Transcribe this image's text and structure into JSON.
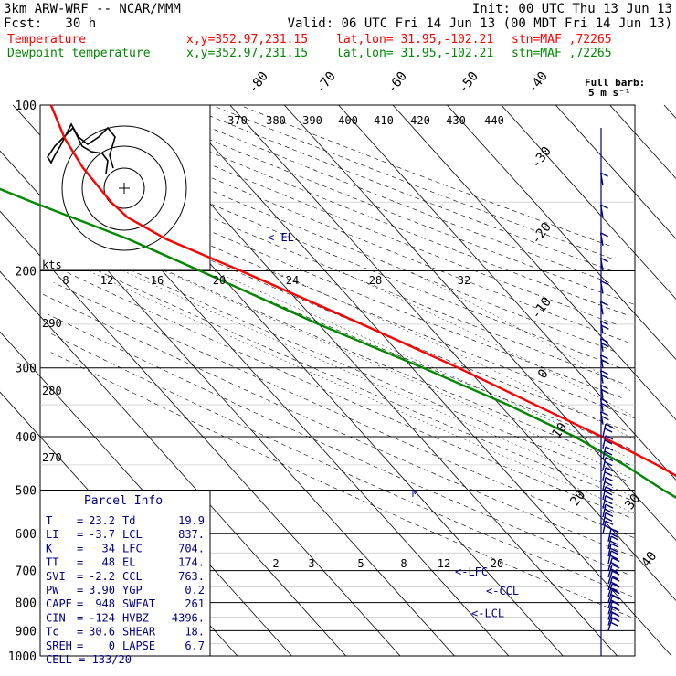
{
  "header": {
    "model": "3km ARW-WRF -- NCAR/MMM",
    "init": "Init: 00 UTC Thu 13 Jun 13",
    "fcst": "Fcst:   30 h",
    "valid": "Valid: 06 UTC Fri 14 Jun 13 (00 MDT Fri 14 Jun 13)"
  },
  "legend": {
    "temperature": {
      "label": "Temperature",
      "coords": "x,y=352.97,231.15",
      "latlon": "lat,lon= 31.95,-102.21",
      "station": "stn=MAF ,72265",
      "color": "#ff0000"
    },
    "dewpoint": {
      "label": "Dewpoint temperature",
      "coords": "x,y=352.97,231.15",
      "latlon": "lat,lon= 31.95,-102.21",
      "station": "stn=MAF ,72265",
      "color": "#008800"
    }
  },
  "barb_legend": {
    "line1": "Full barb:",
    "line2": "5 m s⁻¹"
  },
  "hodograph": {
    "units": "kts"
  },
  "parcel": {
    "title": "Parcel Info",
    "rows": [
      {
        "l": "T",
        "lv": "23.2",
        "r": "Td",
        "rv": "19.9"
      },
      {
        "l": "LI",
        "lv": "-3.7",
        "r": "LCL",
        "rv": "837."
      },
      {
        "l": "K",
        "lv": "34",
        "r": "LFC",
        "rv": "704."
      },
      {
        "l": "TT",
        "lv": "48",
        "r": "EL",
        "rv": "174."
      },
      {
        "l": "SVI",
        "lv": "-2.2",
        "r": "CCL",
        "rv": "763."
      },
      {
        "l": "PW",
        "lv": "3.90",
        "r": "YGP",
        "rv": "0.2"
      },
      {
        "l": "CAPE",
        "lv": "948",
        "r": "SWEAT",
        "rv": "261"
      },
      {
        "l": "CIN",
        "lv": "-124",
        "r": "HVBZ",
        "rv": "4396."
      },
      {
        "l": "Tc",
        "lv": "30.6",
        "r": "SHEAR",
        "rv": "18."
      },
      {
        "l": "SREH",
        "lv": "0",
        "r": "LAPSE",
        "rv": "6.7"
      }
    ],
    "cell": "CELL = 133/20"
  },
  "chart_data": {
    "type": "line",
    "title": "",
    "xlabel": "",
    "ylabel": "",
    "y_scale": "log-pressure",
    "pressure_ticks": [
      100,
      200,
      300,
      400,
      500,
      600,
      700,
      800,
      900,
      1000
    ],
    "isotherm_labels": [
      -80,
      -70,
      -60,
      -50,
      -40,
      -30,
      -20,
      -10,
      0,
      10,
      20,
      30,
      40
    ],
    "mixing_ratio_labels_low": [
      "2",
      "3",
      "5",
      "8",
      "12",
      "20"
    ],
    "mixing_ratio_labels_high": [
      "8",
      "12",
      "16",
      "20",
      "24",
      "28",
      "32"
    ],
    "theta_labels_top": [
      "370",
      "380",
      "390",
      "400",
      "410",
      "420",
      "430",
      "440"
    ],
    "theta_labels_left": [
      "290",
      "280",
      "270"
    ],
    "level_markers": [
      {
        "label": "<-EL",
        "p": 174
      },
      {
        "label": "<-LFC",
        "p": 704
      },
      {
        "label": "<-CCL",
        "p": 763
      },
      {
        "label": "<-LCL",
        "p": 837
      }
    ],
    "series": [
      {
        "name": "Temperature",
        "color": "#ff0000",
        "points": [
          {
            "p": 905,
            "t": 25.5
          },
          {
            "p": 880,
            "t": 24.0
          },
          {
            "p": 850,
            "t": 21.5
          },
          {
            "p": 820,
            "t": 20.0
          },
          {
            "p": 800,
            "t": 18.5
          },
          {
            "p": 780,
            "t": 14.5
          },
          {
            "p": 750,
            "t": 11.5
          },
          {
            "p": 700,
            "t": 8.0
          },
          {
            "p": 650,
            "t": 5.5
          },
          {
            "p": 600,
            "t": 1.2
          },
          {
            "p": 550,
            "t": -3.0
          },
          {
            "p": 500,
            "t": -7.0
          },
          {
            "p": 450,
            "t": -11.0
          },
          {
            "p": 400,
            "t": -16.5
          },
          {
            "p": 350,
            "t": -23.5
          },
          {
            "p": 300,
            "t": -31.5
          },
          {
            "p": 250,
            "t": -42.0
          },
          {
            "p": 200,
            "t": -55.5
          },
          {
            "p": 175,
            "t": -64.0
          },
          {
            "p": 160,
            "t": -67.5
          },
          {
            "p": 150,
            "t": -68.0
          },
          {
            "p": 130,
            "t": -67.5
          },
          {
            "p": 115,
            "t": -66.0
          },
          {
            "p": 100,
            "t": -63.0
          }
        ]
      },
      {
        "name": "Dewpoint temperature",
        "color": "#008800",
        "points": [
          {
            "p": 890,
            "t": 21.0
          },
          {
            "p": 860,
            "t": 17.0
          },
          {
            "p": 830,
            "t": 11.0
          },
          {
            "p": 800,
            "t": 4.5
          },
          {
            "p": 770,
            "t": 0.5
          },
          {
            "p": 700,
            "t": -3.5
          },
          {
            "p": 600,
            "t": -7.5
          },
          {
            "p": 500,
            "t": -14.0
          },
          {
            "p": 450,
            "t": -17.0
          },
          {
            "p": 400,
            "t": -21.5
          },
          {
            "p": 350,
            "t": -28.5
          },
          {
            "p": 300,
            "t": -38.0
          },
          {
            "p": 250,
            "t": -50.0
          },
          {
            "p": 200,
            "t": -63.0
          },
          {
            "p": 175,
            "t": -71.0
          },
          {
            "p": 150,
            "t": -82.5
          },
          {
            "p": 130,
            "t": -92.5
          },
          {
            "p": 115,
            "t": -82.0
          },
          {
            "p": 100,
            "t": -74.0
          }
        ]
      }
    ],
    "wind_barb_color": "#000080"
  }
}
